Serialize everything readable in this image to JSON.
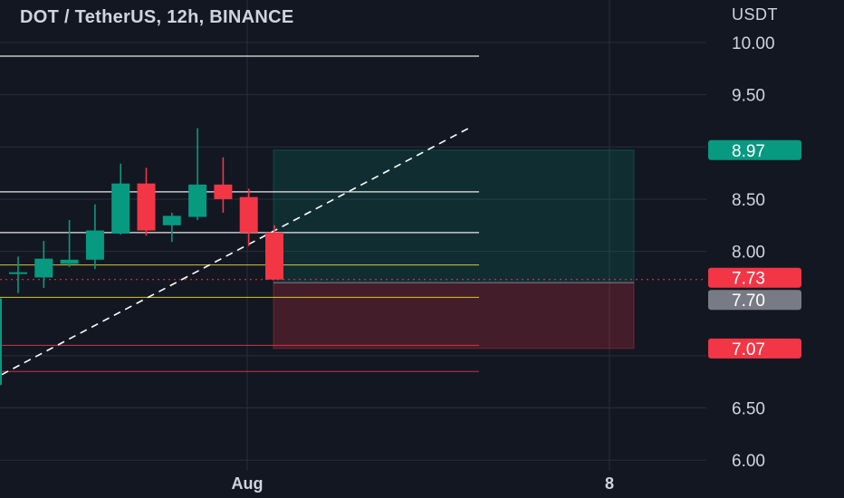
{
  "chart_title": "DOT / TetherUS, 12h, BINANCE",
  "price_currency": "USDT",
  "colors": {
    "background": "#131722",
    "grid": "#2a2e39",
    "text": "#d1d4dc",
    "up": "#089981",
    "down": "#f23645",
    "white_line": "#ffffff",
    "yellow_line": "#f5e42f",
    "red_line": "#f23645",
    "trend_line": "#ffffff",
    "profit_zone": "rgba(8,153,129,0.18)",
    "loss_zone": "rgba(242,54,69,0.22)",
    "current_badge_bg": "#f23645",
    "entry_badge_bg": "#787b86",
    "target_badge_bg": "#089981",
    "stop_badge_bg": "#f23645"
  },
  "chart_data": {
    "type": "candlestick",
    "symbol": "DOT / TetherUS",
    "timeframe": "12h",
    "exchange": "BINANCE",
    "y_axis": {
      "ticks": [
        "10.00",
        "9.50",
        "8.50",
        "8.00",
        "6.50",
        "6.00"
      ],
      "range": [
        6.0,
        10.3
      ]
    },
    "x_axis": {
      "ticks": [
        "Aug",
        "8"
      ]
    },
    "candles": [
      {
        "open": 7.8,
        "high": 7.95,
        "low": 7.6,
        "close": 7.8
      },
      {
        "open": 7.75,
        "high": 8.1,
        "low": 7.65,
        "close": 7.93
      },
      {
        "open": 7.88,
        "high": 8.3,
        "low": 7.85,
        "close": 7.92
      },
      {
        "open": 7.92,
        "high": 8.45,
        "low": 7.83,
        "close": 8.2
      },
      {
        "open": 8.17,
        "high": 8.84,
        "low": 8.16,
        "close": 8.65
      },
      {
        "open": 8.65,
        "high": 8.8,
        "low": 8.15,
        "close": 8.2
      },
      {
        "open": 8.25,
        "high": 8.37,
        "low": 8.09,
        "close": 8.34
      },
      {
        "open": 8.33,
        "high": 9.18,
        "low": 8.3,
        "close": 8.64
      },
      {
        "open": 8.64,
        "high": 8.9,
        "low": 8.37,
        "close": 8.5
      },
      {
        "open": 8.52,
        "high": 8.6,
        "low": 8.05,
        "close": 8.18
      },
      {
        "open": 8.18,
        "high": 8.25,
        "low": 7.73,
        "close": 7.73
      }
    ],
    "horizontal_levels": [
      {
        "price": 9.87,
        "color": "white"
      },
      {
        "price": 8.57,
        "color": "white"
      },
      {
        "price": 8.18,
        "color": "white"
      },
      {
        "price": 7.87,
        "color": "yellow"
      },
      {
        "price": 7.56,
        "color": "yellow"
      },
      {
        "price": 7.1,
        "color": "red"
      },
      {
        "price": 6.85,
        "color": "red"
      }
    ],
    "trend_line": {
      "from": 6.82,
      "to": 9.2,
      "style": "dashed"
    },
    "position_tool": {
      "target": 8.97,
      "entry": 7.7,
      "stop": 7.07,
      "current_price": 7.73
    },
    "price_labels": [
      {
        "text": "8.97",
        "price": 8.97,
        "kind": "target"
      },
      {
        "text": "7.73",
        "price": 7.73,
        "kind": "current"
      },
      {
        "text": "7.70",
        "price": 7.7,
        "kind": "entry"
      },
      {
        "text": "7.07",
        "price": 7.07,
        "kind": "stop"
      }
    ],
    "grid": true,
    "legend": "none"
  }
}
